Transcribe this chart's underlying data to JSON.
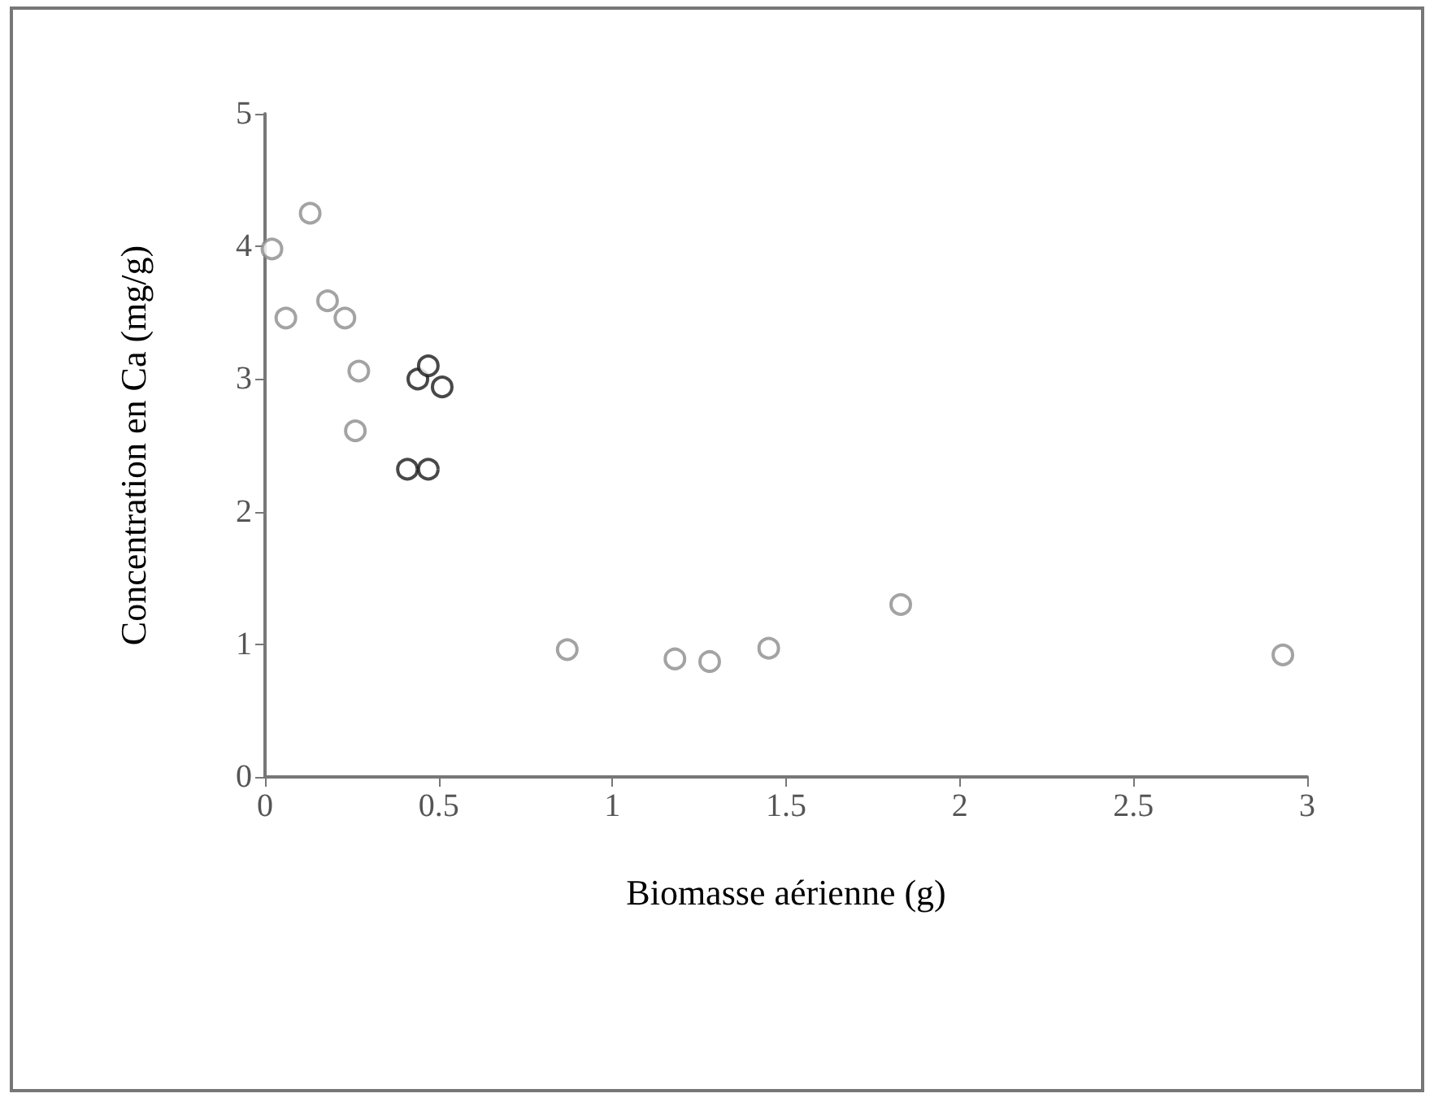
{
  "chart_data": {
    "type": "scatter",
    "xlabel": "Biomasse aérienne (g)",
    "ylabel": "Concentration en Ca (mg/g)",
    "xlim": [
      0,
      3
    ],
    "xticks": [
      0,
      0.5,
      1,
      1.5,
      2,
      2.5,
      3
    ],
    "ylim": [
      0,
      5
    ],
    "yticks": [
      0,
      1,
      2,
      3,
      4,
      5
    ],
    "grid": false,
    "marker": "circle",
    "series": [
      {
        "color": "#8c8c8c",
        "x": [
          0.02,
          0.06,
          0.13,
          0.18,
          0.23,
          0.27,
          0.26,
          0.87,
          1.18,
          1.28,
          1.45,
          1.83,
          2.93
        ],
        "values": [
          3.98,
          3.46,
          4.25,
          3.59,
          3.46,
          3.06,
          2.61,
          0.96,
          0.89,
          0.87,
          0.97,
          1.3,
          0.92
        ]
      },
      {
        "color": "#1a1a1a",
        "x": [
          0.41,
          0.47,
          0.44,
          0.47,
          0.51
        ],
        "values": [
          2.32,
          2.32,
          3.0,
          3.1,
          2.94
        ]
      }
    ]
  }
}
